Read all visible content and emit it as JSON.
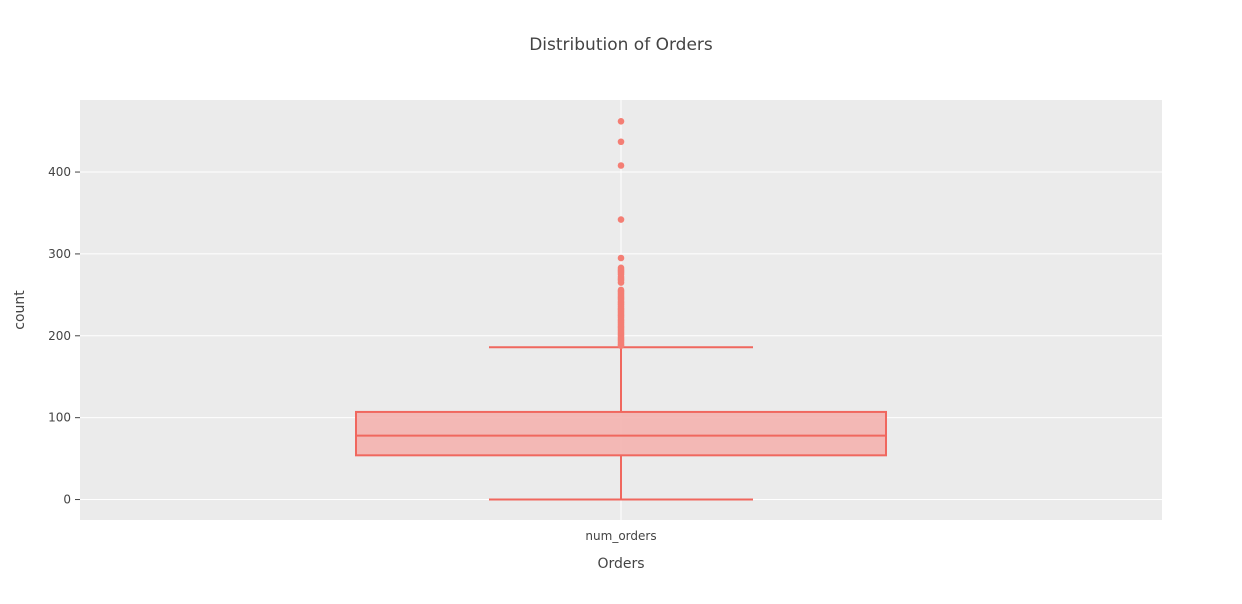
{
  "chart_data": {
    "type": "box",
    "title": "Distribution of Orders",
    "xlabel": "Orders",
    "ylabel": "count",
    "categories": [
      "num_orders"
    ],
    "ylim": [
      -25,
      488
    ],
    "yticks": [
      0,
      100,
      200,
      300,
      400
    ],
    "grid": true,
    "box": {
      "min": 0,
      "q1": 54,
      "median": 78,
      "q3": 107,
      "upper_fence": 186
    },
    "outliers": [
      462,
      437,
      408,
      342,
      295,
      283,
      281,
      279,
      277,
      275,
      272,
      270,
      268,
      265,
      256,
      254,
      252,
      250,
      248,
      246,
      244,
      242,
      240,
      238,
      236,
      234,
      232,
      230,
      228,
      226,
      224,
      222,
      220,
      218,
      216,
      214,
      212,
      210,
      208,
      206,
      204,
      202,
      200,
      198,
      196,
      194,
      192,
      190,
      188
    ],
    "colors": {
      "box_line": "#F0675E",
      "box_fill": "#F4B3AF",
      "points": "#F47E74",
      "plot_bg": "#EBEBEB",
      "grid": "#FFFFFF",
      "text": "#444444"
    }
  }
}
